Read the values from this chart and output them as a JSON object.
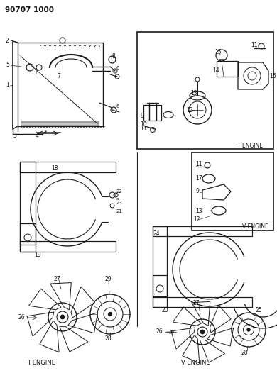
{
  "title": "90707 1000",
  "bg_color": "#ffffff",
  "line_color": "#1a1a1a",
  "text_color": "#111111",
  "fig_width": 3.9,
  "fig_height": 5.33,
  "dpi": 100,
  "labels": {
    "t_engine_bottom_left": "T ENGINE",
    "v_engine_bottom_right": "V ENGINE",
    "t_engine_box": "T ENGINE",
    "v_engine_box": "V ENGINE"
  }
}
